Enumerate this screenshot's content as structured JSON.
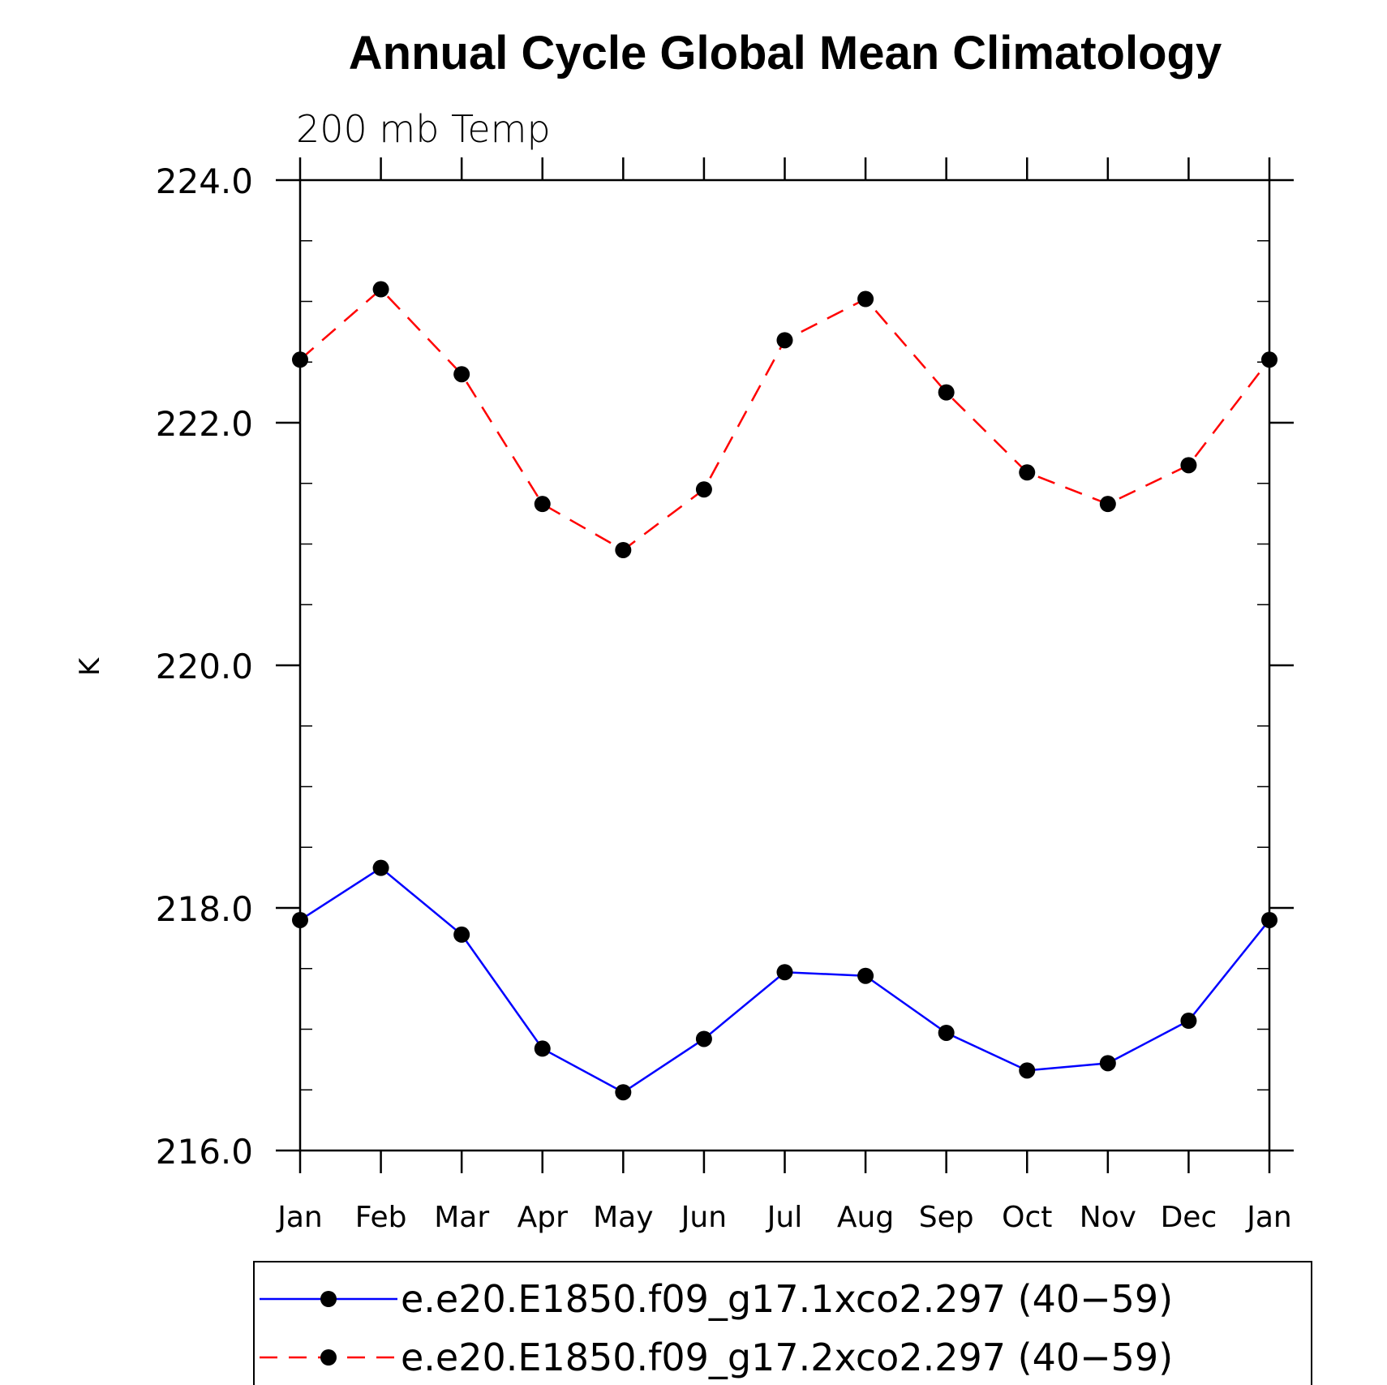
{
  "chart_data": {
    "type": "line",
    "title": "Annual Cycle Global Mean Climatology",
    "subtitle": "200 mb Temp",
    "xlabel": "",
    "ylabel": "K",
    "ylim": [
      216.0,
      224.0
    ],
    "yticks": [
      "216.0",
      "218.0",
      "220.0",
      "222.0",
      "224.0"
    ],
    "ytick_values": [
      216.0,
      218.0,
      220.0,
      222.0,
      224.0
    ],
    "categories": [
      "Jan",
      "Feb",
      "Mar",
      "Apr",
      "May",
      "Jun",
      "Jul",
      "Aug",
      "Sep",
      "Oct",
      "Nov",
      "Dec",
      "Jan"
    ],
    "grid": false,
    "legend_position": "bottom",
    "series": [
      {
        "name": "e.e20.E1850.f09_g17.1xco2.297 (40−59)",
        "color": "#0000ff",
        "dash": "solid",
        "marker": "filled-circle",
        "values": [
          217.9,
          218.33,
          217.78,
          216.84,
          216.48,
          216.92,
          217.47,
          217.44,
          216.97,
          216.66,
          216.72,
          217.07,
          217.9
        ]
      },
      {
        "name": "e.e20.E1850.f09_g17.2xco2.297 (40−59)",
        "color": "#ff0000",
        "dash": "dashed",
        "marker": "filled-circle",
        "values": [
          222.52,
          223.1,
          222.4,
          221.33,
          220.95,
          221.45,
          222.68,
          223.02,
          222.25,
          221.59,
          221.33,
          221.65,
          222.52
        ]
      }
    ]
  }
}
